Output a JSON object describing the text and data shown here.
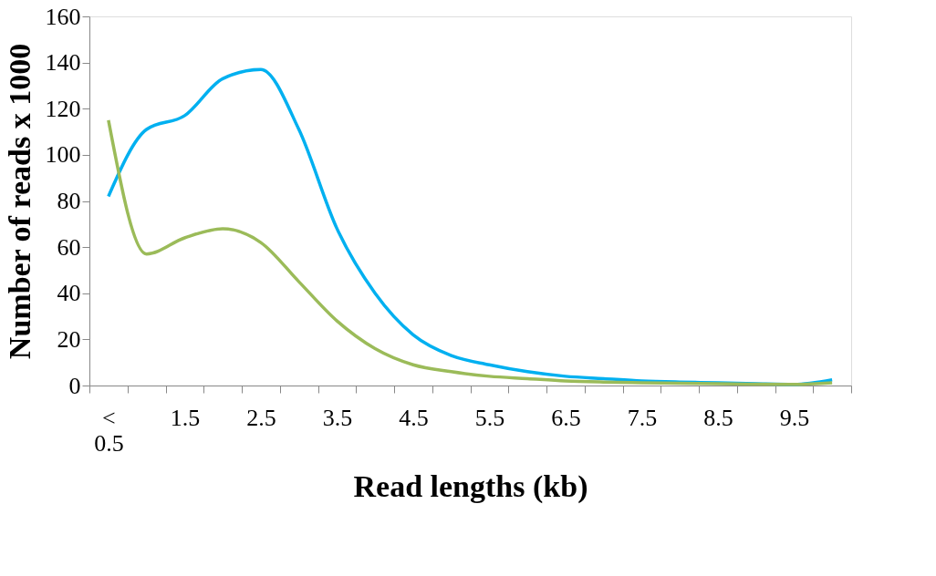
{
  "chart_data": {
    "type": "line",
    "xlabel": "Read lengths (kb)",
    "ylabel": "Number of reads x 1000",
    "categories": [
      "< 0.5",
      null,
      "1.5",
      null,
      "2.5",
      null,
      "3.5",
      null,
      "4.5",
      null,
      "5.5",
      null,
      "6.5",
      null,
      "7.5",
      null,
      "8.5",
      null,
      "9.5",
      null
    ],
    "series": [
      {
        "color": "#00b0f0",
        "values": [
          82,
          111,
          117,
          133,
          137,
          111,
          68,
          40,
          22,
          13,
          9,
          6,
          4,
          3,
          2,
          1.5,
          1.2,
          0.8,
          0.5,
          2.5
        ]
      },
      {
        "color": "#9bbb59",
        "values": [
          115,
          57,
          64,
          68,
          62,
          45,
          28,
          16,
          9,
          6,
          4,
          3,
          2,
          1.5,
          1.2,
          1,
          0.8,
          0.6,
          0.5,
          1.2
        ]
      }
    ],
    "ylim": [
      0,
      160
    ],
    "yticks": [
      0,
      20,
      40,
      60,
      80,
      100,
      120,
      140,
      160
    ],
    "grid": false,
    "legend": false,
    "marker": "none",
    "line_style": "solid"
  }
}
